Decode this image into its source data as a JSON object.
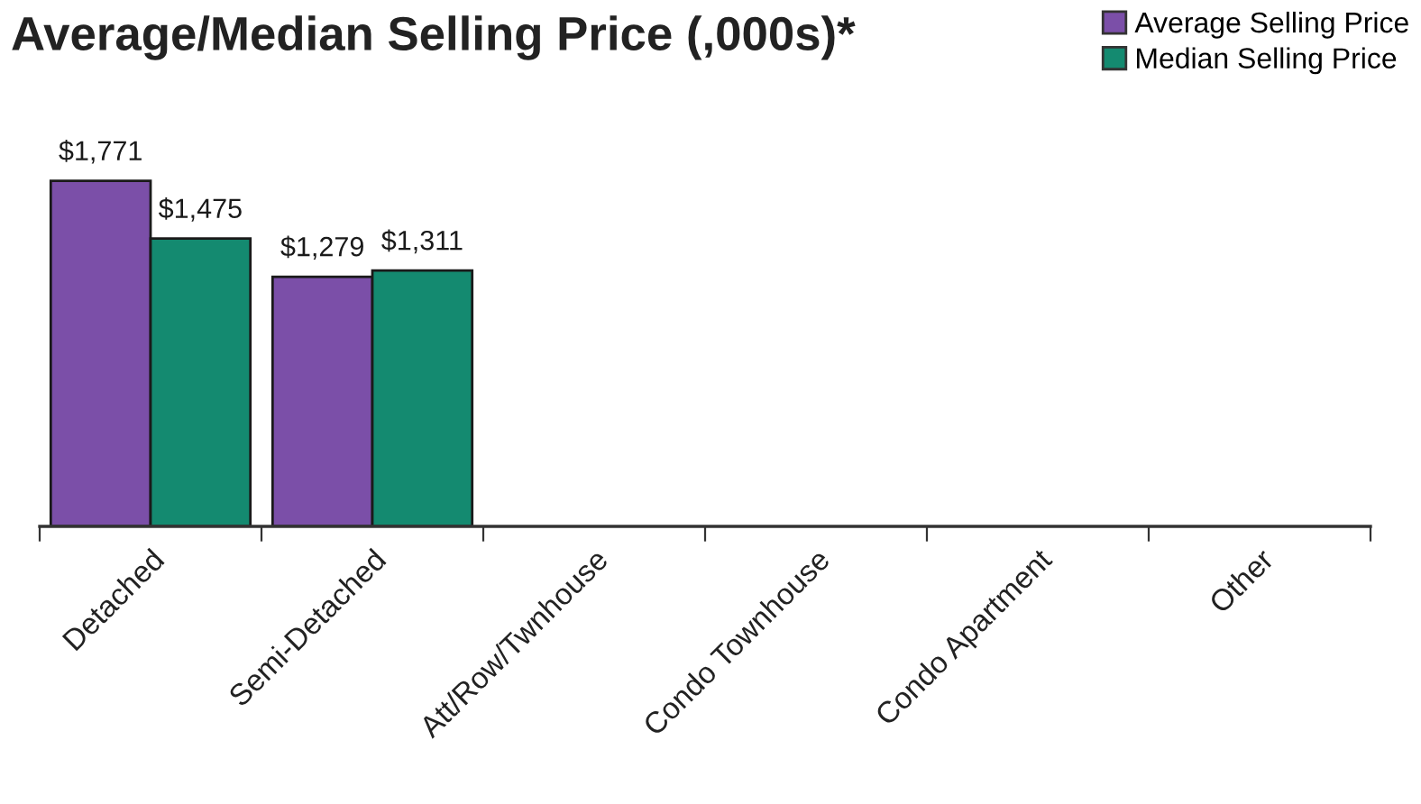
{
  "chart_data": {
    "type": "bar",
    "title": "Average/Median Selling Price (,000s)*",
    "categories": [
      "Detached",
      "Semi-Detached",
      "Att/Row/Twnhouse",
      "Condo Townhouse",
      "Condo Apartment",
      "Other"
    ],
    "series": [
      {
        "name": "Average Selling Price",
        "color": "#7b4fa8",
        "values": [
          1771,
          1279,
          null,
          null,
          null,
          null
        ],
        "value_labels": [
          "$1,771",
          "$1,279",
          null,
          null,
          null,
          null
        ]
      },
      {
        "name": "Median Selling Price",
        "color": "#148a70",
        "values": [
          1475,
          1311,
          null,
          null,
          null,
          null
        ],
        "value_labels": [
          "$1,475",
          "$1,311",
          null,
          null,
          null,
          null
        ]
      }
    ],
    "legend": "top right"
  }
}
